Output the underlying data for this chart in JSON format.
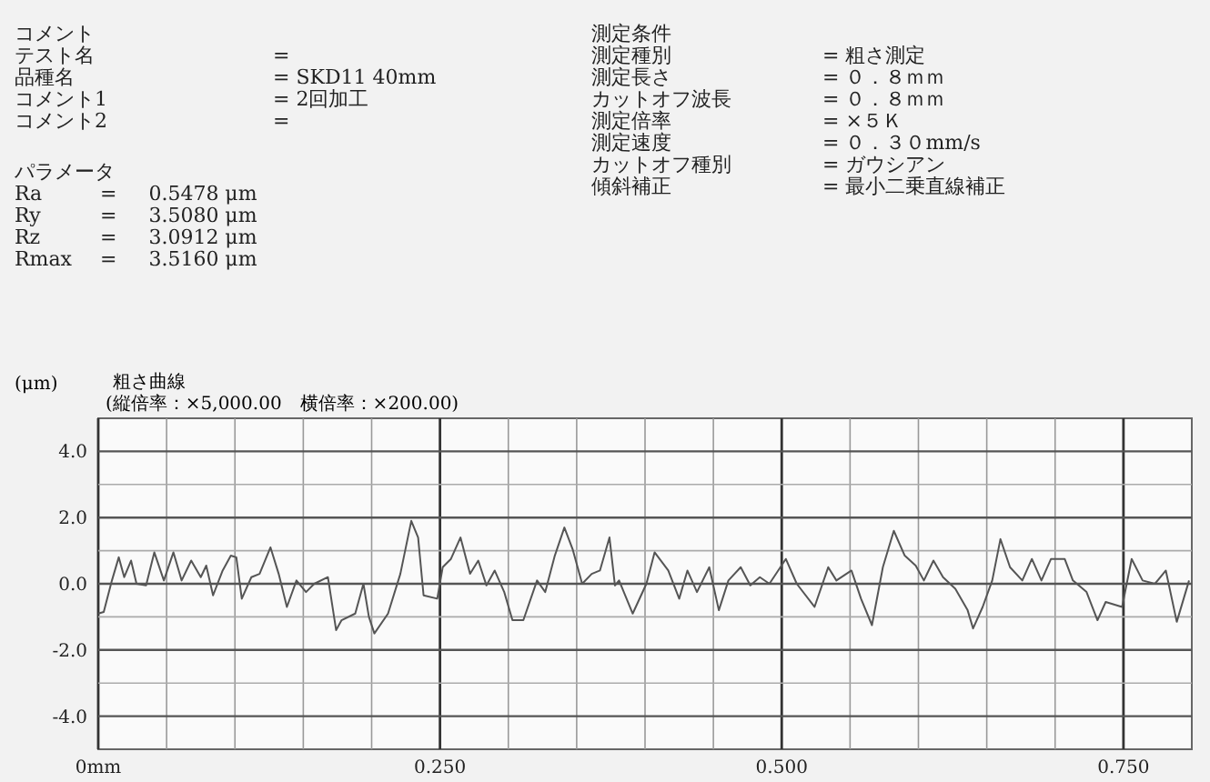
{
  "chart_data": {
    "type": "line",
    "title": "粗さ曲線",
    "subtitle": "(縦倍率：×5,000.00　横倍率：×200.00)",
    "ylabel": "(μm)",
    "annotations": [
      "コメント",
      "テスト名 = ",
      "品種名 = SKD11 40mm",
      "コメント1 = 2回加工",
      "コメント2 = ",
      "パラメータ",
      "Ra = 0.5478 μm",
      "Ry = 3.5080 μm",
      "Rz = 3.0912 μm",
      "Rmax = 3.5160 μm",
      "測定条件",
      "測定種別 = 粗さ測定",
      "測定長さ = ０．８ｍｍ",
      "カットオフ波長 = ０．８ｍｍ",
      "測定倍率 = ×５Ｋ",
      "測定速度 = ０．３０mm/s",
      "カットオフ種別 = ガウシアン",
      "傾斜補正 = 最小二乗直線補正"
    ],
    "x": [
      0,
      0.004,
      0.01,
      0.015,
      0.019,
      0.024,
      0.028,
      0.035,
      0.041,
      0.048,
      0.055,
      0.061,
      0.068,
      0.075,
      0.079,
      0.084,
      0.091,
      0.097,
      0.101,
      0.105,
      0.112,
      0.118,
      0.126,
      0.132,
      0.138,
      0.145,
      0.152,
      0.158,
      0.168,
      0.174,
      0.178,
      0.188,
      0.194,
      0.198,
      0.202,
      0.212,
      0.221,
      0.229,
      0.234,
      0.238,
      0.248,
      0.252,
      0.258,
      0.265,
      0.272,
      0.278,
      0.284,
      0.29,
      0.297,
      0.303,
      0.311,
      0.321,
      0.327,
      0.334,
      0.341,
      0.347,
      0.354,
      0.361,
      0.367,
      0.374,
      0.378,
      0.381,
      0.391,
      0.401,
      0.407,
      0.417,
      0.425,
      0.431,
      0.438,
      0.447,
      0.454,
      0.461,
      0.47,
      0.477,
      0.484,
      0.491,
      0.503,
      0.511,
      0.524,
      0.534,
      0.54,
      0.551,
      0.558,
      0.566,
      0.574,
      0.582,
      0.59,
      0.598,
      0.604,
      0.611,
      0.618,
      0.627,
      0.636,
      0.64,
      0.647,
      0.654,
      0.66,
      0.667,
      0.676,
      0.683,
      0.69,
      0.697,
      0.707,
      0.713,
      0.723,
      0.731,
      0.737,
      0.749,
      0.756,
      0.764,
      0.773,
      0.781,
      0.789,
      0.798
    ],
    "series": [
      {
        "color": "#555555",
        "values": [
          -0.9,
          -0.85,
          0.1,
          0.8,
          0.2,
          0.7,
          0,
          -0.05,
          0.95,
          0.1,
          0.95,
          0.1,
          0.7,
          0.2,
          0.55,
          -0.35,
          0.4,
          0.85,
          0.8,
          -0.45,
          0.2,
          0.3,
          1.1,
          0.3,
          -0.7,
          0.1,
          -0.25,
          0,
          0.2,
          -1.4,
          -1.1,
          -0.9,
          0,
          -1.0,
          -1.5,
          -0.9,
          0.3,
          1.9,
          1.4,
          -0.35,
          -0.45,
          0.5,
          0.75,
          1.4,
          0.3,
          0.7,
          -0.05,
          0.4,
          -0.25,
          -1.1,
          -1.1,
          0.1,
          -0.25,
          0.85,
          1.7,
          1.05,
          0,
          0.3,
          0.4,
          1.4,
          -0.05,
          0.1,
          -0.9,
          0,
          0.95,
          0.4,
          -0.45,
          0.4,
          -0.25,
          0.5,
          -0.8,
          0.1,
          0.5,
          -0.05,
          0.2,
          0,
          0.75,
          0,
          -0.7,
          0.5,
          0.1,
          0.4,
          -0.45,
          -1.25,
          0.5,
          1.6,
          0.85,
          0.55,
          0.1,
          0.7,
          0.2,
          -0.15,
          -0.8,
          -1.35,
          -0.7,
          0.1,
          1.35,
          0.5,
          0.1,
          0.75,
          0.1,
          0.75,
          0.75,
          0.1,
          -0.25,
          -1.1,
          -0.55,
          -0.7,
          0.75,
          0.1,
          0,
          0.4,
          -1.15,
          0.1
        ]
      }
    ],
    "xlim": [
      0,
      0.8
    ],
    "xticks": [
      {
        "value": 0,
        "label": "0mm"
      },
      {
        "value": 0.05,
        "label": null
      },
      {
        "value": 0.1,
        "label": null
      },
      {
        "value": 0.15,
        "label": null
      },
      {
        "value": 0.2,
        "label": null
      },
      {
        "value": 0.25,
        "label": "0.250"
      },
      {
        "value": 0.3,
        "label": null
      },
      {
        "value": 0.35,
        "label": null
      },
      {
        "value": 0.4,
        "label": null
      },
      {
        "value": 0.45,
        "label": null
      },
      {
        "value": 0.5,
        "label": "0.500"
      },
      {
        "value": 0.55,
        "label": null
      },
      {
        "value": 0.6,
        "label": null
      },
      {
        "value": 0.65,
        "label": null
      },
      {
        "value": 0.7,
        "label": null
      },
      {
        "value": 0.75,
        "label": "0.750"
      }
    ],
    "ylim": [
      -5,
      5
    ],
    "yticks": [
      {
        "value": -4,
        "label": "-4.0"
      },
      {
        "value": -3,
        "label": null
      },
      {
        "value": -2,
        "label": "-2.0"
      },
      {
        "value": -1,
        "label": null
      },
      {
        "value": 0,
        "label": "0.0"
      },
      {
        "value": 1,
        "label": null
      },
      {
        "value": 2,
        "label": "2.0"
      },
      {
        "value": 3,
        "label": null
      },
      {
        "value": 4,
        "label": "4.0"
      }
    ],
    "grid": true,
    "marker": "none",
    "line_style": "solid"
  }
}
